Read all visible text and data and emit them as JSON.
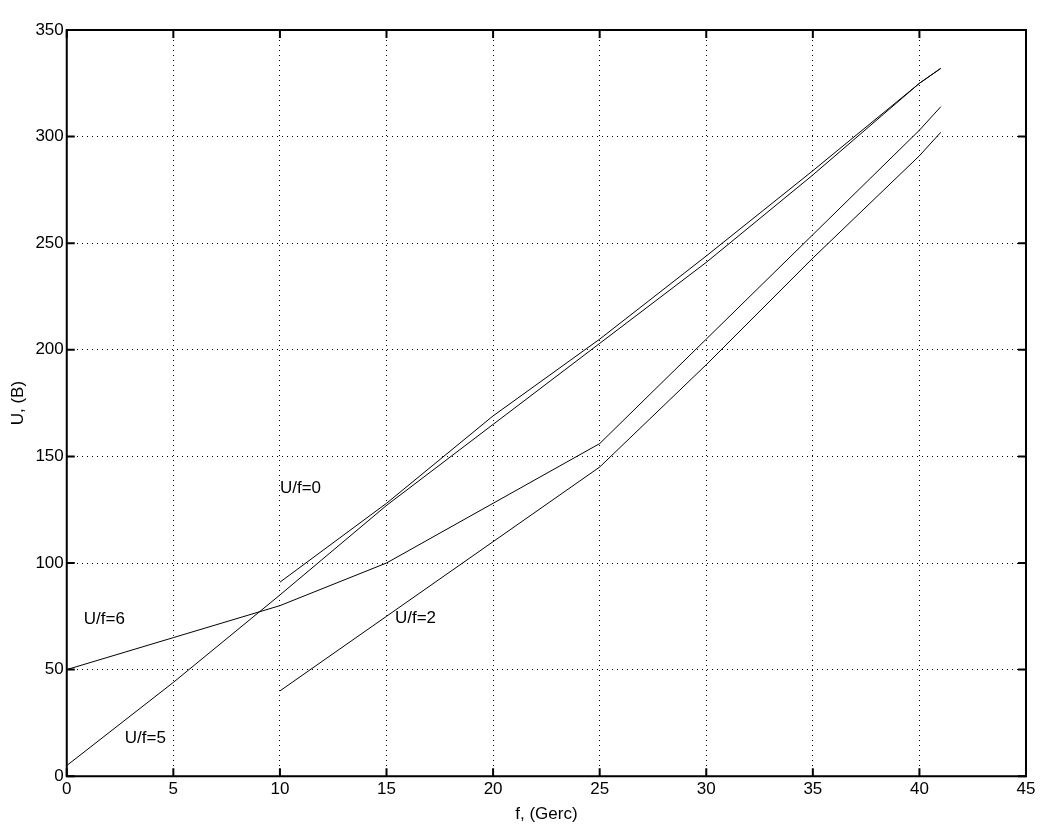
{
  "chart_data": {
    "type": "line",
    "xlabel": "f, (Gerc)",
    "ylabel": "U, (B)",
    "xlim": [
      0,
      45
    ],
    "xticks": [
      0,
      5,
      10,
      15,
      20,
      25,
      30,
      35,
      40,
      45
    ],
    "ylim": [
      0,
      350
    ],
    "yticks": [
      0,
      50,
      100,
      150,
      200,
      250,
      300,
      350
    ],
    "grid": true,
    "series": [
      {
        "name": "U/f=5",
        "color": "#000000",
        "x": [
          0,
          5,
          10,
          15,
          20,
          25,
          30,
          35,
          40,
          41
        ],
        "values": [
          5,
          44,
          85,
          127,
          165,
          203,
          241,
          282,
          325,
          332
        ]
      },
      {
        "name": "U/f=0",
        "color": "#000000",
        "x": [
          10,
          15,
          20,
          25,
          30,
          35,
          40,
          41
        ],
        "values": [
          91,
          128,
          169,
          205,
          244,
          284,
          325,
          332
        ]
      },
      {
        "name": "U/f=6",
        "color": "#000000",
        "x": [
          0,
          5,
          10,
          15,
          25,
          30,
          35,
          40,
          41
        ],
        "values": [
          50,
          65,
          80,
          100,
          156,
          205,
          254,
          303,
          314
        ]
      },
      {
        "name": "U/f=2",
        "color": "#000000",
        "x": [
          10,
          15,
          20,
          25,
          30,
          35,
          40,
          41
        ],
        "values": [
          40,
          75,
          110,
          145,
          193,
          243,
          291,
          302
        ]
      }
    ]
  }
}
